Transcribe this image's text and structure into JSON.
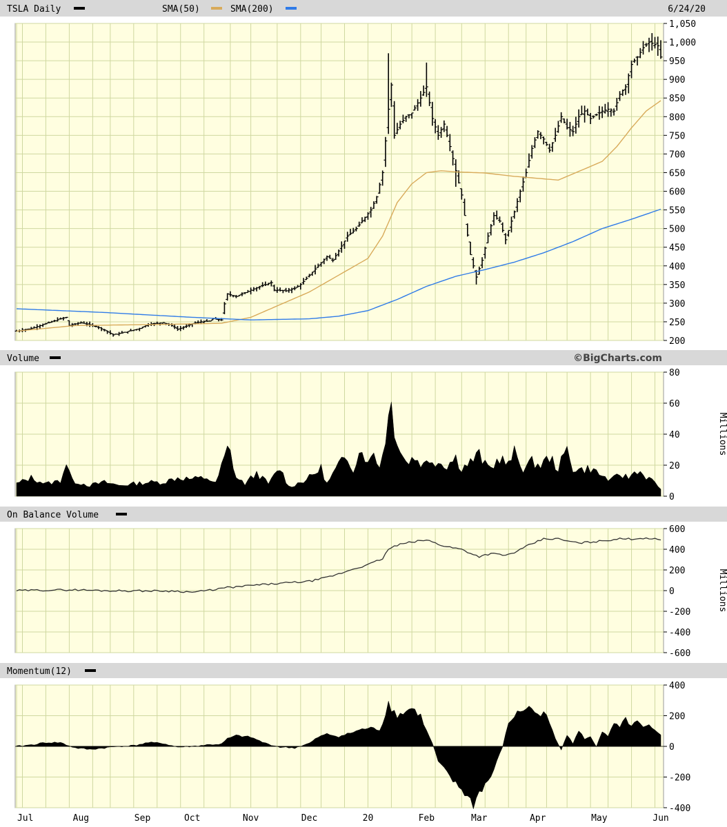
{
  "chart_data": [
    {
      "type": "ohlc",
      "title": "TSLA Daily",
      "date": "6/24/20",
      "legend": [
        "SMA(50)",
        "SMA(200)"
      ],
      "colors": {
        "SMA(50)": "#d8aa5a",
        "SMA(200)": "#2f7be8"
      },
      "ylim": [
        200,
        1050
      ],
      "yticks": [
        200,
        250,
        300,
        350,
        400,
        450,
        500,
        550,
        600,
        650,
        700,
        750,
        800,
        850,
        900,
        950,
        1000,
        1050
      ],
      "ytick_labels": [
        "200",
        "250",
        "300",
        "350",
        "400",
        "450",
        "500",
        "550",
        "600",
        "650",
        "700",
        "750",
        "800",
        "850",
        "900",
        "950",
        "1,000",
        "1,050"
      ],
      "credit": "©BigCharts.com",
      "price_keys": [
        [
          0,
          225
        ],
        [
          5,
          232
        ],
        [
          10,
          245
        ],
        [
          15,
          258
        ],
        [
          17,
          262
        ],
        [
          18,
          240
        ],
        [
          22,
          248
        ],
        [
          27,
          238
        ],
        [
          30,
          228
        ],
        [
          33,
          215
        ],
        [
          37,
          222
        ],
        [
          42,
          232
        ],
        [
          45,
          243
        ],
        [
          50,
          248
        ],
        [
          53,
          240
        ],
        [
          55,
          230
        ],
        [
          57,
          235
        ],
        [
          60,
          245
        ],
        [
          63,
          250
        ],
        [
          66,
          252
        ],
        [
          67,
          258
        ],
        [
          70,
          255
        ],
        [
          71,
          298
        ],
        [
          72,
          325
        ],
        [
          75,
          318
        ],
        [
          80,
          335
        ],
        [
          85,
          350
        ],
        [
          87,
          355
        ],
        [
          88,
          335
        ],
        [
          92,
          333
        ],
        [
          95,
          340
        ],
        [
          97,
          350
        ],
        [
          100,
          375
        ],
        [
          103,
          400
        ],
        [
          106,
          425
        ],
        [
          108,
          415
        ],
        [
          110,
          440
        ],
        [
          113,
          480
        ],
        [
          116,
          500
        ],
        [
          119,
          530
        ],
        [
          121,
          550
        ],
        [
          123,
          585
        ],
        [
          125,
          650
        ],
        [
          127,
          820
        ],
        [
          128,
          885
        ],
        [
          129,
          750
        ],
        [
          131,
          780
        ],
        [
          133,
          800
        ],
        [
          135,
          810
        ],
        [
          138,
          850
        ],
        [
          140,
          880
        ],
        [
          142,
          795
        ],
        [
          144,
          750
        ],
        [
          146,
          780
        ],
        [
          148,
          720
        ],
        [
          150,
          655
        ],
        [
          152,
          590
        ],
        [
          153,
          535
        ],
        [
          155,
          430
        ],
        [
          157,
          370
        ],
        [
          159,
          415
        ],
        [
          161,
          480
        ],
        [
          163,
          535
        ],
        [
          165,
          520
        ],
        [
          167,
          470
        ],
        [
          170,
          545
        ],
        [
          172,
          600
        ],
        [
          174,
          650
        ],
        [
          176,
          715
        ],
        [
          178,
          760
        ],
        [
          180,
          740
        ],
        [
          182,
          710
        ],
        [
          184,
          750
        ],
        [
          186,
          800
        ],
        [
          188,
          770
        ],
        [
          190,
          760
        ],
        [
          192,
          800
        ],
        [
          194,
          815
        ],
        [
          196,
          795
        ],
        [
          200,
          815
        ],
        [
          202,
          820
        ],
        [
          204,
          815
        ],
        [
          206,
          860
        ],
        [
          208,
          880
        ],
        [
          210,
          940
        ],
        [
          212,
          960
        ],
        [
          214,
          985
        ],
        [
          216,
          1000
        ],
        [
          219,
          990
        ],
        [
          220,
          960
        ]
      ],
      "sma50_keys": [
        [
          0,
          225
        ],
        [
          20,
          240
        ],
        [
          50,
          243
        ],
        [
          70,
          246
        ],
        [
          80,
          262
        ],
        [
          100,
          330
        ],
        [
          120,
          420
        ],
        [
          125,
          480
        ],
        [
          130,
          570
        ],
        [
          135,
          620
        ],
        [
          140,
          650
        ],
        [
          145,
          655
        ],
        [
          150,
          652
        ],
        [
          160,
          649
        ],
        [
          170,
          640
        ],
        [
          185,
          630
        ],
        [
          200,
          680
        ],
        [
          205,
          720
        ],
        [
          210,
          770
        ],
        [
          215,
          815
        ],
        [
          220,
          843
        ]
      ],
      "sma200_keys": [
        [
          0,
          285
        ],
        [
          30,
          275
        ],
        [
          60,
          262
        ],
        [
          80,
          255
        ],
        [
          100,
          258
        ],
        [
          110,
          265
        ],
        [
          120,
          280
        ],
        [
          130,
          310
        ],
        [
          140,
          345
        ],
        [
          150,
          372
        ],
        [
          160,
          390
        ],
        [
          170,
          410
        ],
        [
          180,
          435
        ],
        [
          190,
          465
        ],
        [
          200,
          500
        ],
        [
          210,
          525
        ],
        [
          220,
          552
        ]
      ],
      "high_days": [
        [
          127,
          970
        ],
        [
          140,
          945
        ]
      ],
      "low_days": [
        [
          157,
          350
        ],
        [
          150,
          612
        ]
      ]
    },
    {
      "type": "area",
      "title": "Volume",
      "ylabel": "Millions",
      "ylim": [
        0,
        80
      ],
      "yticks": [
        0,
        20,
        40,
        60,
        80
      ],
      "keys": [
        [
          0,
          8
        ],
        [
          5,
          12
        ],
        [
          10,
          8
        ],
        [
          15,
          10
        ],
        [
          17,
          22
        ],
        [
          19,
          10
        ],
        [
          25,
          7
        ],
        [
          30,
          9
        ],
        [
          35,
          7
        ],
        [
          40,
          8
        ],
        [
          45,
          9
        ],
        [
          50,
          9
        ],
        [
          55,
          12
        ],
        [
          60,
          11
        ],
        [
          65,
          12
        ],
        [
          68,
          8
        ],
        [
          72,
          30
        ],
        [
          73,
          28
        ],
        [
          75,
          12
        ],
        [
          78,
          8
        ],
        [
          82,
          15
        ],
        [
          86,
          8
        ],
        [
          90,
          18
        ],
        [
          93,
          6
        ],
        [
          97,
          9
        ],
        [
          100,
          12
        ],
        [
          104,
          18
        ],
        [
          106,
          8
        ],
        [
          110,
          20
        ],
        [
          113,
          25
        ],
        [
          115,
          18
        ],
        [
          118,
          32
        ],
        [
          120,
          20
        ],
        [
          122,
          30
        ],
        [
          124,
          18
        ],
        [
          127,
          50
        ],
        [
          128,
          60
        ],
        [
          129,
          45
        ],
        [
          131,
          30
        ],
        [
          133,
          22
        ],
        [
          136,
          25
        ],
        [
          139,
          20
        ],
        [
          141,
          24
        ],
        [
          144,
          22
        ],
        [
          147,
          20
        ],
        [
          150,
          25
        ],
        [
          152,
          18
        ],
        [
          155,
          22
        ],
        [
          158,
          27
        ],
        [
          160,
          20
        ],
        [
          162,
          18
        ],
        [
          165,
          25
        ],
        [
          168,
          20
        ],
        [
          170,
          28
        ],
        [
          173,
          18
        ],
        [
          176,
          22
        ],
        [
          179,
          20
        ],
        [
          182,
          25
        ],
        [
          185,
          18
        ],
        [
          188,
          30
        ],
        [
          190,
          18
        ],
        [
          193,
          17
        ],
        [
          196,
          18
        ],
        [
          200,
          13
        ],
        [
          203,
          10
        ],
        [
          206,
          14
        ],
        [
          209,
          12
        ],
        [
          212,
          17
        ],
        [
          214,
          14
        ],
        [
          217,
          10
        ],
        [
          220,
          5
        ]
      ]
    },
    {
      "type": "line",
      "title": "On Balance Volume",
      "ylabel": "Millions",
      "ylim": [
        -600,
        600
      ],
      "yticks": [
        -600,
        -400,
        -200,
        0,
        200,
        400,
        600
      ],
      "keys": [
        [
          0,
          0
        ],
        [
          10,
          5
        ],
        [
          20,
          8
        ],
        [
          30,
          0
        ],
        [
          40,
          -2
        ],
        [
          50,
          -3
        ],
        [
          55,
          -5
        ],
        [
          60,
          -15
        ],
        [
          65,
          0
        ],
        [
          72,
          30
        ],
        [
          75,
          35
        ],
        [
          80,
          50
        ],
        [
          90,
          70
        ],
        [
          100,
          90
        ],
        [
          105,
          120
        ],
        [
          110,
          160
        ],
        [
          115,
          210
        ],
        [
          120,
          250
        ],
        [
          125,
          310
        ],
        [
          127,
          400
        ],
        [
          130,
          440
        ],
        [
          135,
          470
        ],
        [
          140,
          490
        ],
        [
          145,
          440
        ],
        [
          148,
          420
        ],
        [
          152,
          400
        ],
        [
          156,
          350
        ],
        [
          158,
          330
        ],
        [
          162,
          360
        ],
        [
          167,
          340
        ],
        [
          171,
          380
        ],
        [
          175,
          440
        ],
        [
          180,
          500
        ],
        [
          185,
          500
        ],
        [
          188,
          480
        ],
        [
          192,
          460
        ],
        [
          196,
          470
        ],
        [
          200,
          480
        ],
        [
          205,
          500
        ],
        [
          210,
          500
        ],
        [
          215,
          510
        ],
        [
          220,
          490
        ]
      ]
    },
    {
      "type": "area",
      "title": "Momentum(12)",
      "ylim": [
        -400,
        400
      ],
      "yticks": [
        -400,
        -200,
        0,
        200,
        400
      ],
      "keys": [
        [
          0,
          0
        ],
        [
          5,
          10
        ],
        [
          10,
          25
        ],
        [
          15,
          25
        ],
        [
          17,
          10
        ],
        [
          20,
          -10
        ],
        [
          25,
          -20
        ],
        [
          30,
          -10
        ],
        [
          35,
          0
        ],
        [
          40,
          5
        ],
        [
          45,
          25
        ],
        [
          50,
          20
        ],
        [
          55,
          -5
        ],
        [
          60,
          0
        ],
        [
          65,
          10
        ],
        [
          70,
          15
        ],
        [
          72,
          50
        ],
        [
          75,
          70
        ],
        [
          80,
          60
        ],
        [
          85,
          20
        ],
        [
          90,
          -5
        ],
        [
          95,
          -10
        ],
        [
          100,
          20
        ],
        [
          103,
          60
        ],
        [
          106,
          80
        ],
        [
          110,
          65
        ],
        [
          113,
          80
        ],
        [
          116,
          100
        ],
        [
          120,
          120
        ],
        [
          124,
          110
        ],
        [
          126,
          200
        ],
        [
          127,
          320
        ],
        [
          128,
          250
        ],
        [
          130,
          200
        ],
        [
          132,
          220
        ],
        [
          135,
          250
        ],
        [
          138,
          200
        ],
        [
          140,
          100
        ],
        [
          142,
          20
        ],
        [
          144,
          -100
        ],
        [
          146,
          -150
        ],
        [
          148,
          -200
        ],
        [
          150,
          -250
        ],
        [
          152,
          -280
        ],
        [
          154,
          -330
        ],
        [
          156,
          -380
        ],
        [
          158,
          -300
        ],
        [
          160,
          -250
        ],
        [
          162,
          -200
        ],
        [
          164,
          -100
        ],
        [
          166,
          0
        ],
        [
          168,
          150
        ],
        [
          170,
          200
        ],
        [
          172,
          230
        ],
        [
          174,
          250
        ],
        [
          176,
          250
        ],
        [
          178,
          200
        ],
        [
          180,
          230
        ],
        [
          182,
          150
        ],
        [
          184,
          50
        ],
        [
          186,
          -20
        ],
        [
          188,
          80
        ],
        [
          190,
          20
        ],
        [
          192,
          100
        ],
        [
          194,
          50
        ],
        [
          196,
          60
        ],
        [
          198,
          0
        ],
        [
          200,
          100
        ],
        [
          202,
          60
        ],
        [
          204,
          150
        ],
        [
          206,
          120
        ],
        [
          208,
          180
        ],
        [
          210,
          130
        ],
        [
          212,
          160
        ],
        [
          214,
          120
        ],
        [
          216,
          130
        ],
        [
          218,
          100
        ],
        [
          220,
          80
        ]
      ]
    }
  ],
  "x_axis": {
    "labels": [
      "Jul",
      "Aug",
      "Sep",
      "Oct",
      "Nov",
      "Dec",
      "20",
      "Feb",
      "Mar",
      "Apr",
      "May",
      "Jun"
    ],
    "label_days": [
      3,
      22,
      43,
      60,
      80,
      100,
      120,
      140,
      158,
      178,
      199,
      220
    ],
    "grid_days": [
      0,
      2,
      10,
      18,
      26,
      32,
      40,
      48,
      56,
      64,
      73,
      80,
      89,
      97,
      104,
      112,
      120,
      128,
      135,
      143,
      152,
      160,
      168,
      174,
      181,
      188,
      196,
      202,
      210,
      218
    ]
  },
  "palette": {
    "background": "#fffee0",
    "grid": "#cfd8a0",
    "header": "#d8d8d8",
    "bars": "#000000",
    "obv_line": "#333333"
  }
}
